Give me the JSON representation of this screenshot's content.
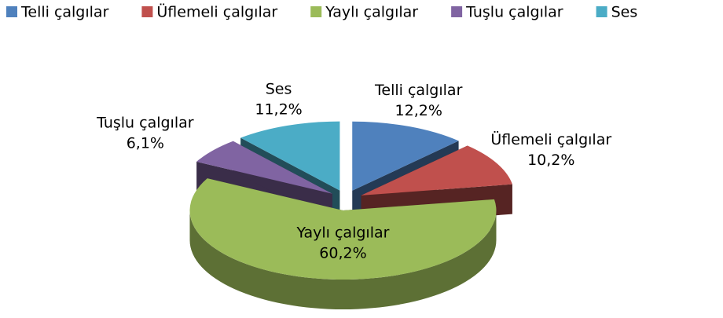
{
  "chart_data": {
    "type": "pie",
    "categories": [
      "Telli çalgılar",
      "Üflemeli çalgılar",
      "Yaylı çalgılar",
      "Tuşlu çalgılar",
      "Ses"
    ],
    "values": [
      12.2,
      10.2,
      60.2,
      6.1,
      11.2
    ],
    "value_labels": [
      "12,2%",
      "10,2%",
      "60,2%",
      "6,1%",
      "11,2%"
    ],
    "colors": [
      "#4f81bd",
      "#c0504d",
      "#9bbb59",
      "#8064a2",
      "#4bacc6"
    ],
    "legend": "top"
  }
}
